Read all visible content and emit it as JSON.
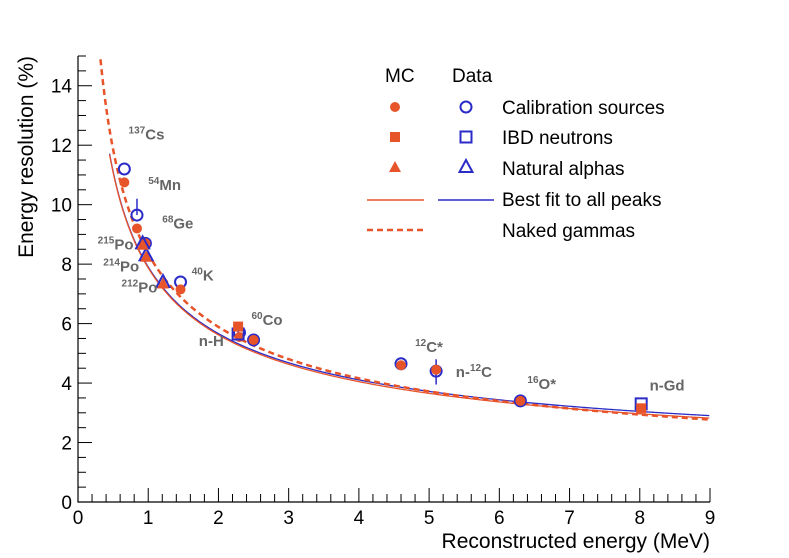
{
  "chart_data": {
    "type": "scatter",
    "title": "",
    "xlabel": "Reconstructed energy (MeV)",
    "ylabel": "Energy resolution (%)",
    "xlim": [
      0,
      9
    ],
    "ylim": [
      0,
      15
    ],
    "x_ticks": [
      0,
      1,
      2,
      3,
      4,
      5,
      6,
      7,
      8,
      9
    ],
    "y_ticks": [
      0,
      2,
      4,
      6,
      8,
      10,
      12,
      14
    ],
    "colors": {
      "mc": "#e8542a",
      "data": "#2b2bc8"
    },
    "legend": {
      "header_mc": "MC",
      "header_data": "Data",
      "entries": [
        {
          "label": "Calibration sources",
          "mc_marker": "circle",
          "data_marker": "open-circle"
        },
        {
          "label": "IBD neutrons",
          "mc_marker": "square",
          "data_marker": "open-square"
        },
        {
          "label": "Natural alphas",
          "mc_marker": "triangle",
          "data_marker": "open-triangle"
        },
        {
          "label": "Best fit to all peaks",
          "mc_marker": "line",
          "data_marker": "line"
        },
        {
          "label": "Naked gammas",
          "mc_marker": "dashed",
          "data_marker": "none"
        }
      ]
    },
    "series": [
      {
        "name": "Data - Calibration sources",
        "marker": "open-circle",
        "points": [
          [
            0.66,
            11.2
          ],
          [
            0.84,
            9.65
          ],
          [
            0.96,
            8.7
          ],
          [
            1.46,
            7.4
          ],
          [
            2.3,
            5.7
          ],
          [
            2.5,
            5.45
          ],
          [
            4.6,
            4.65
          ],
          [
            5.1,
            4.4
          ],
          [
            6.3,
            3.4
          ]
        ]
      },
      {
        "name": "MC - Calibration sources",
        "marker": "circle",
        "points": [
          [
            0.66,
            10.75
          ],
          [
            0.84,
            9.2
          ],
          [
            0.96,
            8.7
          ],
          [
            1.46,
            7.15
          ],
          [
            2.3,
            5.55
          ],
          [
            2.5,
            5.45
          ],
          [
            4.6,
            4.6
          ],
          [
            5.1,
            4.45
          ],
          [
            6.3,
            3.4
          ]
        ]
      },
      {
        "name": "Data - IBD neutrons",
        "marker": "open-square",
        "points": [
          [
            2.28,
            5.65
          ],
          [
            8.02,
            3.3
          ]
        ]
      },
      {
        "name": "MC - IBD neutrons",
        "marker": "square",
        "points": [
          [
            2.28,
            5.9
          ],
          [
            8.02,
            3.15
          ]
        ]
      },
      {
        "name": "Data - Natural alphas",
        "marker": "open-triangle",
        "points": [
          [
            0.92,
            8.7
          ],
          [
            0.97,
            8.3
          ],
          [
            1.21,
            7.4
          ]
        ]
      },
      {
        "name": "MC - Natural alphas",
        "marker": "triangle",
        "points": [
          [
            0.92,
            8.65
          ],
          [
            0.97,
            8.25
          ],
          [
            1.21,
            7.35
          ]
        ]
      },
      {
        "name": "Best fit to all peaks (Data)",
        "type": "line",
        "style": "solid",
        "color": "data",
        "params": {
          "a": 7.79,
          "b": 1.3,
          "c": 0.35
        },
        "x_range": [
          0.45,
          9.0
        ]
      },
      {
        "name": "Best fit to all peaks (MC)",
        "type": "line",
        "style": "solid",
        "color": "mc",
        "params": {
          "a": 7.79,
          "b": 1.1,
          "c": 0.3
        },
        "x_range": [
          0.45,
          9.0
        ]
      },
      {
        "name": "Naked gammas",
        "type": "line",
        "style": "dashed",
        "color": "mc",
        "params": {
          "a": 8.31,
          "b": 0.0,
          "c": 0.78
        },
        "x_range": [
          0.32,
          9.0
        ]
      }
    ],
    "error_bars": [
      {
        "x": 0.84,
        "y_low": 9.65,
        "y_high": 10.2
      },
      {
        "x": 5.1,
        "y_low": 3.95,
        "y_high": 4.8
      },
      {
        "x": 2.28,
        "y_low": 5.5,
        "y_high": 5.8
      }
    ],
    "annotations": [
      {
        "sup": "137",
        "text": "Cs",
        "x": 0.72,
        "y": 12.2
      },
      {
        "sup": "54",
        "text": "Mn",
        "x": 1.0,
        "y": 10.5
      },
      {
        "sup": "68",
        "text": "Ge",
        "x": 1.2,
        "y": 9.2
      },
      {
        "sup": "215",
        "text": "Po",
        "x": 0.28,
        "y": 8.5
      },
      {
        "sup": "214",
        "text": "Po",
        "x": 0.36,
        "y": 7.75
      },
      {
        "sup": "212",
        "text": "Po",
        "x": 0.62,
        "y": 7.05
      },
      {
        "sup": "40",
        "text": "K",
        "x": 1.62,
        "y": 7.45
      },
      {
        "sup": "60",
        "text": "Co",
        "x": 2.47,
        "y": 5.95
      },
      {
        "sup": "",
        "text": "n-H",
        "x": 1.72,
        "y": 5.25
      },
      {
        "sup": "12",
        "text": "C*",
        "x": 4.8,
        "y": 5.05
      },
      {
        "sup": "",
        "text": "n-",
        "sup2": "12",
        "text2": "C",
        "x": 5.38,
        "y": 4.2
      },
      {
        "sup": "16",
        "text": "O*",
        "x": 6.4,
        "y": 3.8
      },
      {
        "sup": "",
        "text": "n-Gd",
        "x": 8.14,
        "y": 3.75
      }
    ]
  }
}
